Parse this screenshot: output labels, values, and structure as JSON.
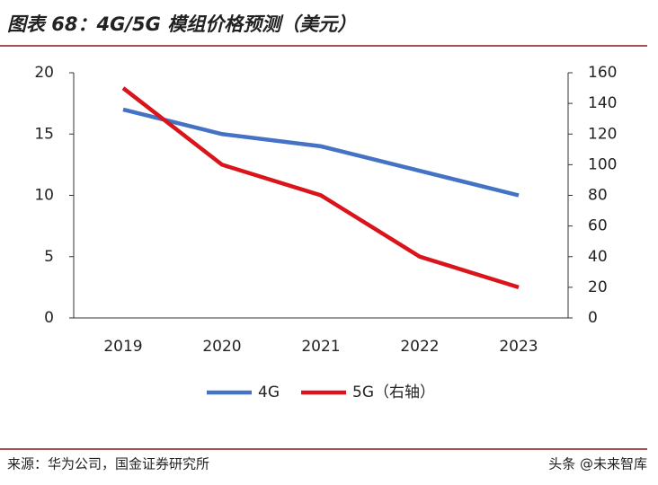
{
  "chart_data": {
    "type": "line",
    "title": "图表 68：4G/5G 模组价格预测（美元）",
    "categories": [
      "2019",
      "2020",
      "2021",
      "2022",
      "2023"
    ],
    "series": [
      {
        "name": "4G",
        "color": "#4472c4",
        "values": [
          17,
          15,
          14,
          12,
          10
        ]
      },
      {
        "name": "5G（右轴）",
        "color": "#d9141b",
        "axis": "y2",
        "values": [
          150,
          100,
          80,
          40,
          20
        ]
      }
    ],
    "ylim": [
      0,
      20
    ],
    "yticks": [
      0,
      5,
      10,
      15,
      20
    ],
    "y2lim": [
      0,
      160
    ],
    "y2ticks": [
      0,
      20,
      40,
      60,
      80,
      100,
      120,
      140,
      160
    ]
  },
  "source": "来源：华为公司，国金证券研究所",
  "watermark": "头条 @未来智库"
}
